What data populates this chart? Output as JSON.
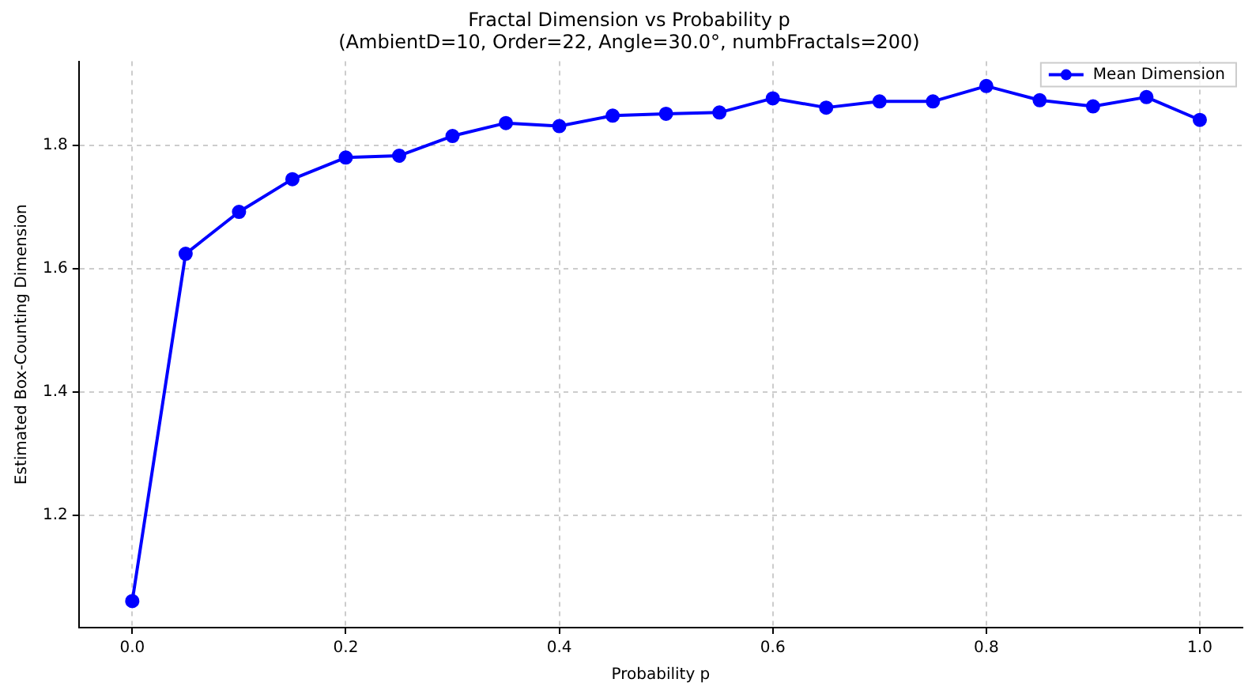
{
  "chart_data": {
    "type": "line",
    "title": "Fractal Dimension vs Probability p",
    "subtitle": "(AmbientD=10, Order=22, Angle=30.0°, numbFractals=200)",
    "xlabel": "Probability p",
    "ylabel": "Estimated Box-Counting Dimension",
    "x": [
      0,
      0.05,
      0.1,
      0.15,
      0.2,
      0.25,
      0.3,
      0.35,
      0.4,
      0.45,
      0.5,
      0.55,
      0.6,
      0.65,
      0.7,
      0.75,
      0.8,
      0.85,
      0.9,
      0.95,
      1.0
    ],
    "series": [
      {
        "name": "Mean Dimension",
        "color": "#0000ff",
        "values": [
          1.061,
          1.624,
          1.692,
          1.745,
          1.78,
          1.783,
          1.815,
          1.836,
          1.831,
          1.848,
          1.851,
          1.853,
          1.876,
          1.861,
          1.871,
          1.871,
          1.896,
          1.873,
          1.863,
          1.878,
          1.841
        ]
      }
    ],
    "xlim": [
      -0.05,
      1.04
    ],
    "ylim": [
      1.018,
      1.936
    ],
    "xticks": [
      {
        "value": 0,
        "label": "0.0"
      },
      {
        "value": 0.2,
        "label": "0.2"
      },
      {
        "value": 0.4,
        "label": "0.4"
      },
      {
        "value": 0.6,
        "label": "0.6"
      },
      {
        "value": 0.8,
        "label": "0.8"
      },
      {
        "value": 1,
        "label": "1.0"
      }
    ],
    "yticks": [
      {
        "value": 1.2,
        "label": "1.2"
      },
      {
        "value": 1.4,
        "label": "1.4"
      },
      {
        "value": 1.6,
        "label": "1.6"
      },
      {
        "value": 1.8,
        "label": "1.8"
      }
    ],
    "grid": true,
    "legend": "top right",
    "marker": "circle",
    "line_style": "solid"
  }
}
